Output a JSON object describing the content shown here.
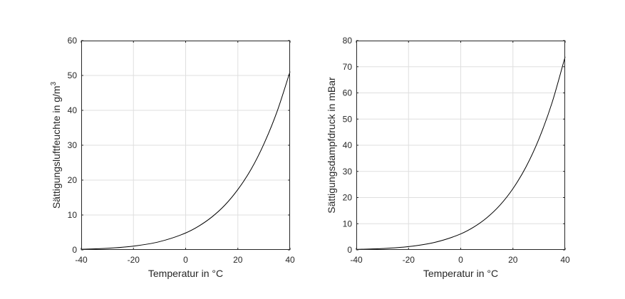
{
  "chart_data": [
    {
      "type": "line",
      "xlabel": "Temperatur in °C",
      "ylabel": "Sättigungsluftfeuchte in g/m",
      "ylabel_sup": "3",
      "xlim": [
        -40,
        40
      ],
      "ylim": [
        0,
        60
      ],
      "xticks": [
        -40,
        -20,
        0,
        20,
        40
      ],
      "yticks": [
        0,
        10,
        20,
        30,
        40,
        50,
        60
      ],
      "grid": true,
      "line_color": "#000000",
      "x": [
        -40,
        -30,
        -20,
        -10,
        0,
        5,
        10,
        15,
        20,
        25,
        30,
        35,
        40
      ],
      "values": [
        0.18,
        0.45,
        1.07,
        2.36,
        4.85,
        6.8,
        9.4,
        12.8,
        17.3,
        23.0,
        30.4,
        39.6,
        51.1
      ]
    },
    {
      "type": "line",
      "xlabel": "Temperatur in °C",
      "ylabel": "Sättigungsdampfdruck in mBar",
      "xlim": [
        -40,
        40
      ],
      "ylim": [
        0,
        80
      ],
      "xticks": [
        -40,
        -20,
        0,
        20,
        40
      ],
      "yticks": [
        0,
        10,
        20,
        30,
        40,
        50,
        60,
        70,
        80
      ],
      "grid": true,
      "line_color": "#000000",
      "x": [
        -40,
        -30,
        -20,
        -10,
        0,
        5,
        10,
        15,
        20,
        25,
        30,
        35,
        40
      ],
      "values": [
        0.19,
        0.51,
        1.25,
        2.86,
        6.11,
        8.72,
        12.28,
        17.05,
        23.4,
        31.7,
        42.5,
        56.3,
        73.8
      ]
    }
  ]
}
